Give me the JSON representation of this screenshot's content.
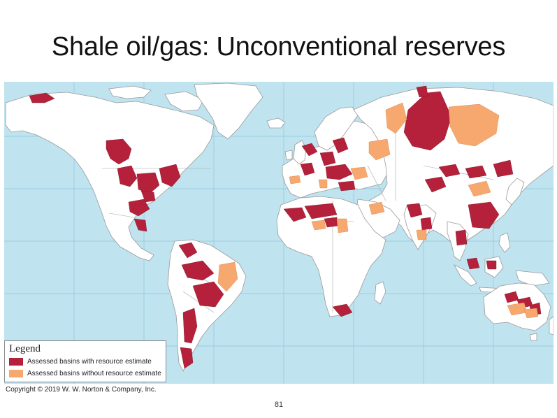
{
  "slide": {
    "title": "Shale oil/gas: Unconventional reserves",
    "page_number": "81",
    "copyright": "Copyright © 2019 W. W. Norton & Company, Inc."
  },
  "map": {
    "ocean_color": "#bfe3ef",
    "land_color": "#ffffff",
    "border_color": "#9a9a9a",
    "graticule_color": "#8fc6da"
  },
  "legend": {
    "title": "Legend",
    "items": [
      {
        "label": "Assessed basins with resource estimate",
        "color": "#b5213a"
      },
      {
        "label": "Assessed basins without resource estimate",
        "color": "#f6a86f"
      }
    ]
  }
}
